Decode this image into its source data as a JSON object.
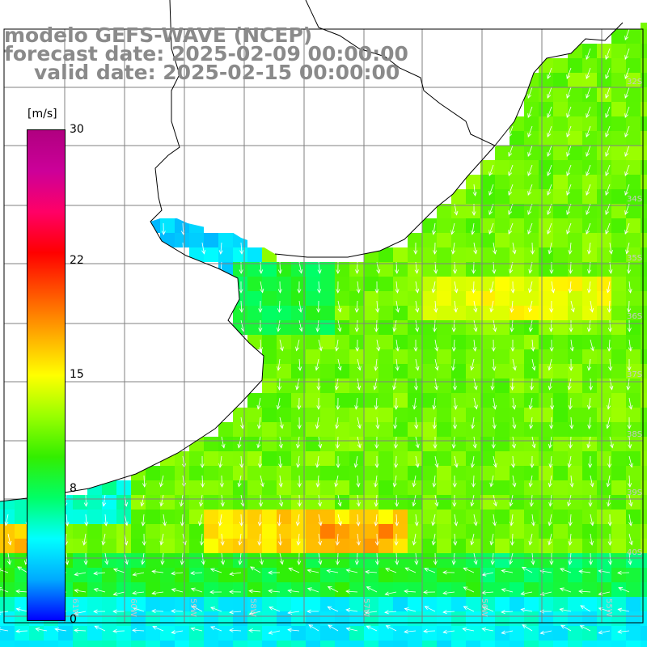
{
  "title": {
    "line1": "modelo GEFS-WAVE (NCEP)",
    "line2": "forecast date: 2025-02-09 00:00:00",
    "line3": "valid date: 2025-02-15 00:00:00"
  },
  "colorbar": {
    "unit": "[m/s]",
    "ticks": [
      "30",
      "22",
      "15",
      "8",
      "0"
    ],
    "tick_values": [
      30,
      22,
      15,
      8,
      0
    ],
    "min": 0,
    "max": 30,
    "colors": [
      "#0000ff",
      "#00aaff",
      "#00ffff",
      "#00ff66",
      "#33ee00",
      "#99ff00",
      "#ffff00",
      "#ffaa00",
      "#ff5500",
      "#ff0000",
      "#ff0066",
      "#cc0099",
      "#b00080"
    ]
  },
  "map": {
    "lat_labels": [
      "32S",
      "34S",
      "35S",
      "36S",
      "37S",
      "38S",
      "39S",
      "40S"
    ],
    "lon_labels": [
      "61W",
      "60W",
      "59W",
      "58W",
      "57W",
      "56W",
      "55W"
    ],
    "land_color": "#ffffff",
    "grid_color": "#808080",
    "coast_color": "#000000",
    "arrow_color": "#ffffff"
  }
}
